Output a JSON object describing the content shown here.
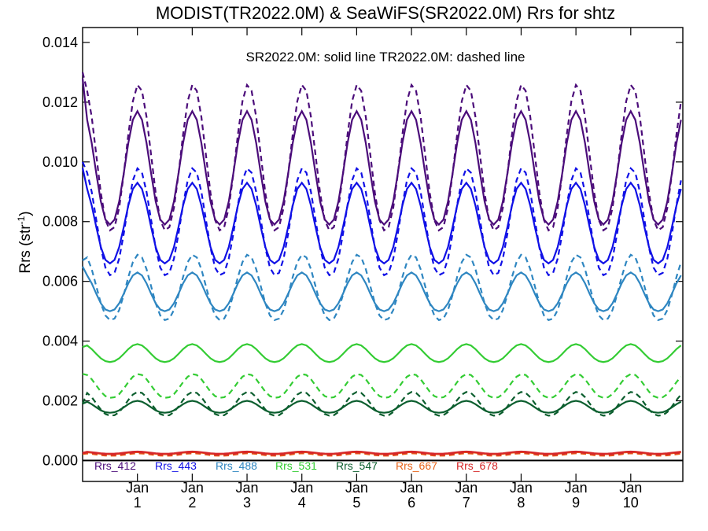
{
  "chart_data": {
    "type": "line",
    "title": "MODIST(TR2022.0M) & SeaWiFS(SR2022.0M)  Rrs for shtz",
    "annotation": "SR2022.0M: solid line   TR2022.0M: dashed line",
    "ylabel": "Rrs (str",
    "ylabel_sup": "-1",
    "ylabel_close": ")",
    "ylim": [
      -0.0007,
      0.0145
    ],
    "xlim": [
      0.0,
      10.95
    ],
    "y_ticks": [
      {
        "v": 0.0,
        "label": "0.000"
      },
      {
        "v": 0.002,
        "label": "0.002"
      },
      {
        "v": 0.004,
        "label": "0.004"
      },
      {
        "v": 0.006,
        "label": "0.006"
      },
      {
        "v": 0.008,
        "label": "0.008"
      },
      {
        "v": 0.01,
        "label": "0.010"
      },
      {
        "v": 0.012,
        "label": "0.012"
      },
      {
        "v": 0.014,
        "label": "0.014"
      }
    ],
    "x_ticks": [
      {
        "v": 1,
        "month": "Jan",
        "year": "1"
      },
      {
        "v": 2,
        "month": "Jan",
        "year": "2"
      },
      {
        "v": 3,
        "month": "Jan",
        "year": "3"
      },
      {
        "v": 4,
        "month": "Jan",
        "year": "4"
      },
      {
        "v": 5,
        "month": "Jan",
        "year": "5"
      },
      {
        "v": 6,
        "month": "Jan",
        "year": "6"
      },
      {
        "v": 7,
        "month": "Jan",
        "year": "7"
      },
      {
        "v": 8,
        "month": "Jan",
        "year": "8"
      },
      {
        "v": 9,
        "month": "Jan",
        "year": "9"
      },
      {
        "v": 10,
        "month": "Jan",
        "year": "10"
      }
    ],
    "zero_line": true,
    "series": [
      {
        "name": "Rrs_412",
        "color": "#4B0C7A",
        "solid": {
          "start": 0.0128,
          "min": 0.0079,
          "max": 0.0117
        },
        "dashed": {
          "start": 0.013,
          "min": 0.0077,
          "max": 0.0126
        }
      },
      {
        "name": "Rrs_443",
        "color": "#1010E6",
        "solid": {
          "start": 0.0098,
          "min": 0.0066,
          "max": 0.0093
        },
        "dashed": {
          "start": 0.01,
          "min": 0.0062,
          "max": 0.0098
        }
      },
      {
        "name": "Rrs_488",
        "color": "#2E86C1",
        "solid": {
          "start": 0.0065,
          "min": 0.005,
          "max": 0.0063
        },
        "dashed": {
          "start": 0.0067,
          "min": 0.0047,
          "max": 0.0069
        }
      },
      {
        "name": "Rrs_531",
        "color": "#33CC33",
        "solid": {
          "start": 0.0038,
          "min": 0.0033,
          "max": 0.0039
        },
        "dashed": {
          "start": 0.0029,
          "min": 0.0021,
          "max": 0.0029
        }
      },
      {
        "name": "Rrs_547",
        "color": "#0B5E2E",
        "solid": {
          "start": 0.0019,
          "min": 0.0016,
          "max": 0.002
        },
        "dashed": {
          "start": 0.0019,
          "min": 0.0015,
          "max": 0.0023
        }
      },
      {
        "name": "Rrs_667",
        "color": "#E8641A",
        "solid": {
          "start": 0.00025,
          "min": 0.00021,
          "max": 0.00028
        },
        "dashed": {
          "start": 0.00022,
          "min": 0.00016,
          "max": 0.00024
        }
      },
      {
        "name": "Rrs_678",
        "color": "#D62728",
        "solid": {
          "start": 0.00026,
          "min": 0.00023,
          "max": 0.0003
        },
        "dashed": {
          "start": 0.00024,
          "min": 0.00019,
          "max": 0.00027
        }
      }
    ],
    "peak_phase_years": 0.0,
    "grid": false,
    "legend_position": "bottom-left"
  }
}
